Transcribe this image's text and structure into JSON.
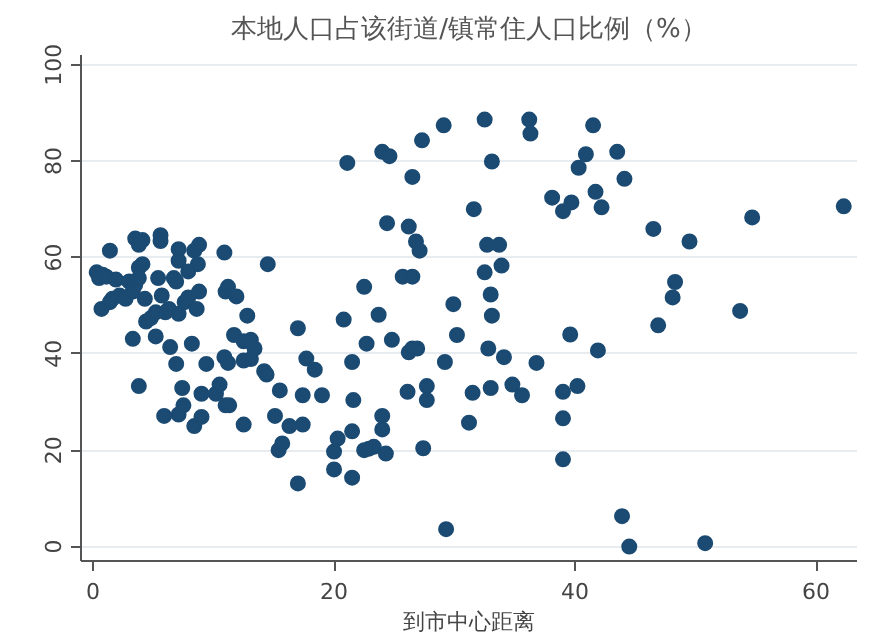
{
  "chart_data": {
    "type": "scatter",
    "title": "本地人口占该街道/镇常住人口比例（%）",
    "xlabel": "到市中心距离",
    "x": [
      0.3,
      0.8,
      0.5,
      1.1,
      0.7,
      1.4,
      1.9,
      1.6,
      1.4,
      2.2,
      2.7,
      3.0,
      3.3,
      3.5,
      3.3,
      3.5,
      4.1,
      3.8,
      3.8,
      4.1,
      3.8,
      4.3,
      3.8,
      4.4,
      4.8,
      5.2,
      5.2,
      5.4,
      5.6,
      5.6,
      5.7,
      6.0,
      6.3,
      6.4,
      6.7,
      6.9,
      6.9,
      7.1,
      7.1,
      7.4,
      7.1,
      7.6,
      7.9,
      7.9,
      8.2,
      8.4,
      8.8,
      8.7,
      8.6,
      8.8,
      7.1,
      7.5,
      8.4,
      9.0,
      5.9,
      9.0,
      9.4,
      10.2,
      10.5,
      10.9,
      11.0,
      11.2,
      10.9,
      11.2,
      11.0,
      11.3,
      11.9,
      12.5,
      12.8,
      11.7,
      12.5,
      13.1,
      13.4,
      12.5,
      13.1,
      14.2,
      14.4,
      14.5,
      15.1,
      15.5,
      15.4,
      15.7,
      16.3,
      17.0,
      17.0,
      17.4,
      17.4,
      17.7,
      18.4,
      19.0,
      20.0,
      20.3,
      20.0,
      21.5,
      21.5,
      21.6,
      21.5,
      20.8,
      21.1,
      22.5,
      22.7,
      22.5,
      22.9,
      23.3,
      23.7,
      24.0,
      24.6,
      24.4,
      24.8,
      24.0,
      24.0,
      24.3,
      25.7,
      26.5,
      26.2,
      26.8,
      27.1,
      26.5,
      27.3,
      26.2,
      26.5,
      26.9,
      26.1,
      27.7,
      27.7,
      27.4,
      29.1,
      29.2,
      29.3,
      29.9,
      30.2,
      31.2,
      31.5,
      31.6,
      32.5,
      32.5,
      32.7,
      33.7,
      33.1,
      33.9,
      33.0,
      33.1,
      32.8,
      33.0,
      34.1,
      34.8,
      35.6,
      36.2,
      36.3,
      36.8,
      38.1,
      39.0,
      39.7,
      39.6,
      39.0,
      39.0,
      39.0,
      40.2,
      40.3,
      40.9,
      41.5,
      41.7,
      42.2,
      41.9,
      43.5,
      44.1,
      46.5,
      49.5,
      54.7,
      62.3,
      48.3,
      48.1,
      46.9,
      53.7,
      43.9,
      44.5,
      50.8
    ],
    "values": [
      56.9,
      56.4,
      55.7,
      56,
      49.3,
      61.4,
      55.4,
      51.4,
      50.7,
      52.1,
      51.4,
      55,
      52.9,
      54.3,
      43.1,
      63.9,
      63.6,
      62.6,
      57.9,
      58.6,
      55.7,
      51.4,
      33.3,
      46.7,
      47.4,
      48.6,
      43.6,
      55.7,
      64.6,
      63.4,
      52.1,
      48.6,
      49.3,
      41.4,
      55.7,
      55,
      37.9,
      61.7,
      59.3,
      32.9,
      48.3,
      50.7,
      57.1,
      51.7,
      42.1,
      61.4,
      62.6,
      58.6,
      49.3,
      52.9,
      27.4,
      29.3,
      25,
      26.9,
      27.1,
      31.7,
      37.9,
      31.7,
      33.6,
      61,
      52.9,
      53.9,
      39.3,
      38.1,
      29.3,
      29.3,
      51.9,
      25.3,
      47.9,
      43.9,
      42.6,
      42.9,
      41.1,
      38.6,
      38.9,
      36.4,
      35.7,
      58.6,
      27.1,
      32.4,
      20,
      21.4,
      25,
      45.3,
      13.1,
      31.4,
      25.3,
      39,
      36.7,
      31.4,
      19.7,
      22.4,
      16,
      14.3,
      23.9,
      30.4,
      38.3,
      47.1,
      79.6,
      53.9,
      42.1,
      20,
      20.3,
      20.7,
      48.1,
      81.9,
      81,
      67.1,
      42.9,
      27.1,
      24.3,
      19.3,
      56,
      56,
      66.4,
      63.3,
      61.4,
      76.7,
      84.3,
      40.3,
      41.1,
      41.1,
      32.1,
      33.3,
      30.4,
      20.4,
      87.4,
      38.3,
      3.6,
      50.3,
      43.9,
      25.7,
      31.9,
      70,
      88.6,
      56.9,
      62.6,
      62.6,
      79.9,
      58.3,
      52.3,
      47.9,
      41.1,
      32.9,
      39.3,
      33.6,
      31.4,
      88.6,
      85.7,
      38.1,
      72.4,
      69.6,
      71.4,
      44,
      32.1,
      26.6,
      18.1,
      33.3,
      78.6,
      81.4,
      87.4,
      73.6,
      70.4,
      40.7,
      81.9,
      76.3,
      65.9,
      63.3,
      68.3,
      70.6,
      54.9,
      51.7,
      45.9,
      48.9,
      6.3,
      0,
      0.7
    ],
    "color": "#1b4a72",
    "marker": "circle",
    "xlim": [
      -1,
      63.4
    ],
    "ylim": [
      -3,
      102
    ],
    "xticks": [
      0,
      20,
      40,
      60
    ],
    "yticks": [
      0,
      20,
      40,
      60,
      80,
      100
    ],
    "grid": "y"
  }
}
